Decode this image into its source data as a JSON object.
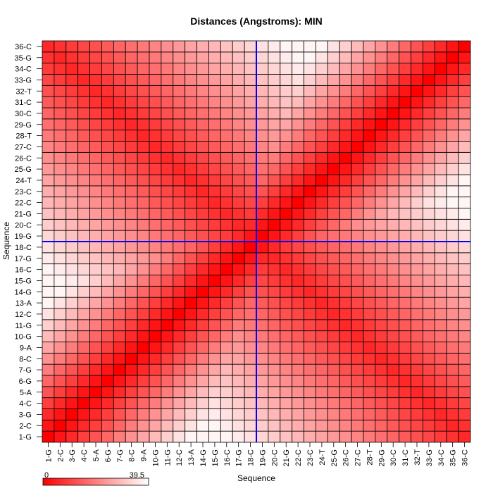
{
  "chart_data": {
    "type": "heatmap",
    "title": "Distances (Angstroms):  MIN",
    "xlabel": "Sequence",
    "ylabel": "Sequence",
    "labels": [
      "1-G",
      "2-C",
      "3-G",
      "4-C",
      "5-A",
      "6-G",
      "7-G",
      "8-C",
      "9-A",
      "10-G",
      "11-G",
      "12-C",
      "13-A",
      "14-G",
      "15-G",
      "16-C",
      "17-G",
      "18-C",
      "19-G",
      "20-C",
      "21-G",
      "22-C",
      "23-C",
      "24-T",
      "25-G",
      "26-C",
      "27-C",
      "28-T",
      "29-G",
      "30-C",
      "31-C",
      "32-T",
      "33-G",
      "34-C",
      "35-G",
      "36-C"
    ],
    "colorscale": {
      "min": 0,
      "max": 39.5,
      "min_label": "0",
      "max_label": "39.5",
      "low_color": "#ff0000",
      "high_color": "#ffffff"
    },
    "crosshair": {
      "color": "#0000ff",
      "x_between": [
        "18-C",
        "19-G"
      ],
      "y_between": [
        "18-C",
        "19-G"
      ]
    },
    "grid": true
  }
}
